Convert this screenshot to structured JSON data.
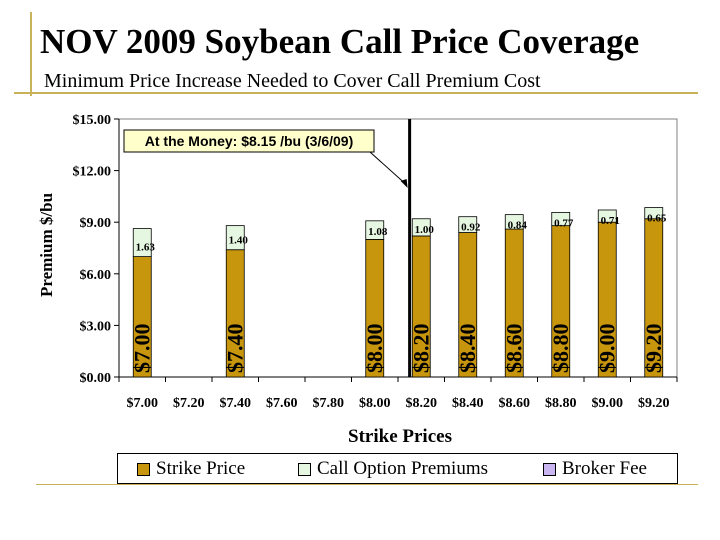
{
  "title": "NOV 2009 Soybean Call Price Coverage",
  "subtitle": "Minimum Price Increase Needed to Cover Call Premium Cost",
  "chart_data": {
    "type": "bar",
    "stacked": true,
    "xlabel": "Strike Prices",
    "ylabel": "Premium $/bu",
    "ylim": [
      0,
      15
    ],
    "yticks": [
      "$0.00",
      "$3.00",
      "$6.00",
      "$9.00",
      "$12.00",
      "$15.00"
    ],
    "ytick_values": [
      0,
      3,
      6,
      9,
      12,
      15
    ],
    "grid": false,
    "legend_position": "bottom",
    "categories": [
      "$7.00",
      "$7.20",
      "$7.40",
      "$7.60",
      "$7.80",
      "$8.00",
      "$8.20",
      "$8.40",
      "$8.60",
      "$8.80",
      "$9.00",
      "$9.20"
    ],
    "series": [
      {
        "name": "Strike Price",
        "color": "#c8960c",
        "values": [
          7.0,
          null,
          7.4,
          null,
          null,
          8.0,
          8.2,
          8.4,
          8.6,
          8.8,
          9.0,
          9.2
        ],
        "labels": [
          "$7.00",
          "",
          "$7.40",
          "",
          "",
          "$8.00",
          "$8.20",
          "$8.40",
          "$8.60",
          "$8.80",
          "$9.00",
          "$9.20"
        ]
      },
      {
        "name": "Call Option Premiums",
        "color": "#e6f7e1",
        "values": [
          1.63,
          null,
          1.4,
          null,
          null,
          1.08,
          1.0,
          0.92,
          0.84,
          0.77,
          0.71,
          0.65
        ],
        "labels": [
          "1.63",
          "",
          "1.40",
          "",
          "",
          "1.08",
          "1.00",
          "0.92",
          "0.84",
          "0.77",
          "0.71",
          "0.65"
        ]
      },
      {
        "name": "Broker Fee",
        "color": "#c9b6f0",
        "values": [
          null,
          null,
          null,
          null,
          null,
          null,
          null,
          null,
          null,
          null,
          null,
          null
        ]
      }
    ],
    "annotation": {
      "text": "At the Money: $8.15 /bu (3/6/09)",
      "x_value": 8.15
    }
  }
}
